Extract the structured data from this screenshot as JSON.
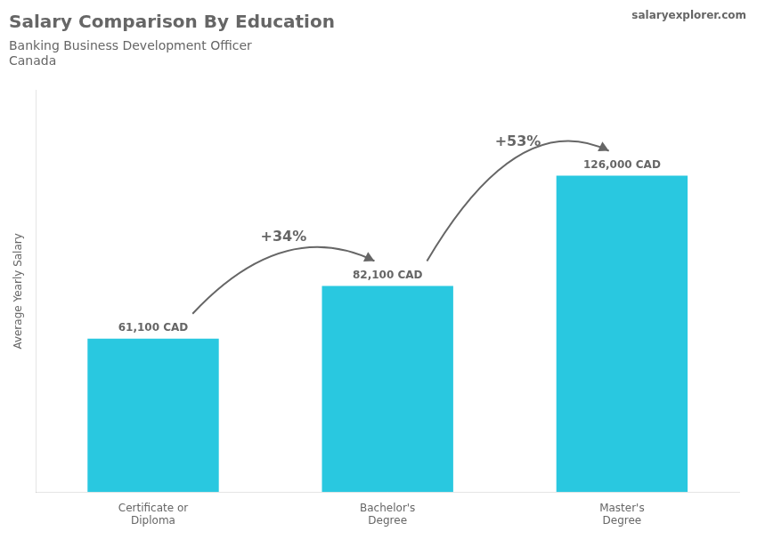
{
  "chart_data": {
    "type": "bar",
    "title": "Salary Comparison By Education",
    "subtitle": [
      "Banking Business Development Officer",
      "Canada"
    ],
    "ylabel": "Average Yearly Salary",
    "categories": [
      "Certificate or\nDiploma",
      "Bachelor's\nDegree",
      "Master's\nDegree"
    ],
    "values": [
      61100,
      82100,
      126000
    ],
    "value_labels": [
      "61,100 CAD",
      "82,100 CAD",
      "126,000 CAD"
    ],
    "data_labels": true,
    "color": "#29c8e0",
    "ylim": [
      0,
      160000
    ],
    "grid": false,
    "tick_labels": "x",
    "annotations": [
      {
        "text": "salaryexplorer.com"
      },
      {
        "text": "+34%",
        "from": 0,
        "to": 1
      },
      {
        "text": "+53%",
        "from": 1,
        "to": 2
      }
    ]
  }
}
